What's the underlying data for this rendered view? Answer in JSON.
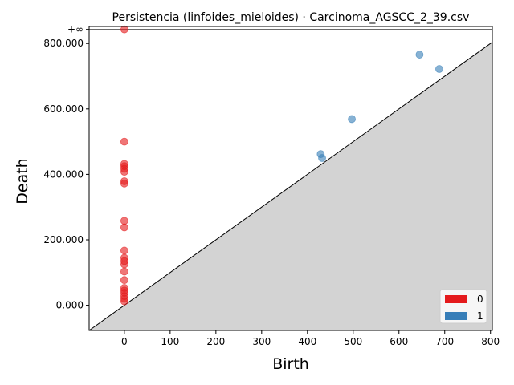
{
  "chart_data": {
    "type": "scatter",
    "title": "Persistencia (linfoides_mieloides) · Carcinoma_AGSCC_2_39.csv",
    "xlabel": "Birth",
    "ylabel": "Death",
    "xlim": [
      -77,
      804
    ],
    "ylim": [
      -77,
      852
    ],
    "x_ticks": [
      0,
      100,
      200,
      300,
      400,
      500,
      600,
      700,
      800
    ],
    "y_ticks": [
      {
        "value": 0,
        "label": "0.000"
      },
      {
        "value": 200,
        "label": "200.000"
      },
      {
        "value": 400,
        "label": "400.000"
      },
      {
        "value": 600,
        "label": "600.000"
      },
      {
        "value": 800,
        "label": "800.000"
      }
    ],
    "infinity": {
      "value": 843,
      "label": "+∞"
    },
    "legend_position": "bottom-right",
    "grid": false,
    "colors": {
      "h0": "#e41a1c",
      "h1": "#377eb8",
      "diagonal_fill": "#d3d3d3"
    },
    "series": [
      {
        "name": "0",
        "color": "#e41a1c",
        "points": [
          [
            0,
            843
          ],
          [
            0,
            500
          ],
          [
            0,
            432
          ],
          [
            0,
            425
          ],
          [
            0,
            417
          ],
          [
            0,
            408
          ],
          [
            0,
            379
          ],
          [
            0,
            372
          ],
          [
            0,
            258
          ],
          [
            0,
            238
          ],
          [
            0,
            167
          ],
          [
            0,
            145
          ],
          [
            0,
            135
          ],
          [
            0,
            125
          ],
          [
            0,
            103
          ],
          [
            0,
            77
          ],
          [
            0,
            53
          ],
          [
            0,
            45
          ],
          [
            0,
            38
          ],
          [
            0,
            28
          ],
          [
            0,
            20
          ],
          [
            0,
            12
          ]
        ]
      },
      {
        "name": "1",
        "color": "#377eb8",
        "points": [
          [
            429,
            462
          ],
          [
            432,
            450
          ],
          [
            497,
            569
          ],
          [
            645,
            766
          ],
          [
            688,
            722
          ]
        ]
      }
    ]
  }
}
